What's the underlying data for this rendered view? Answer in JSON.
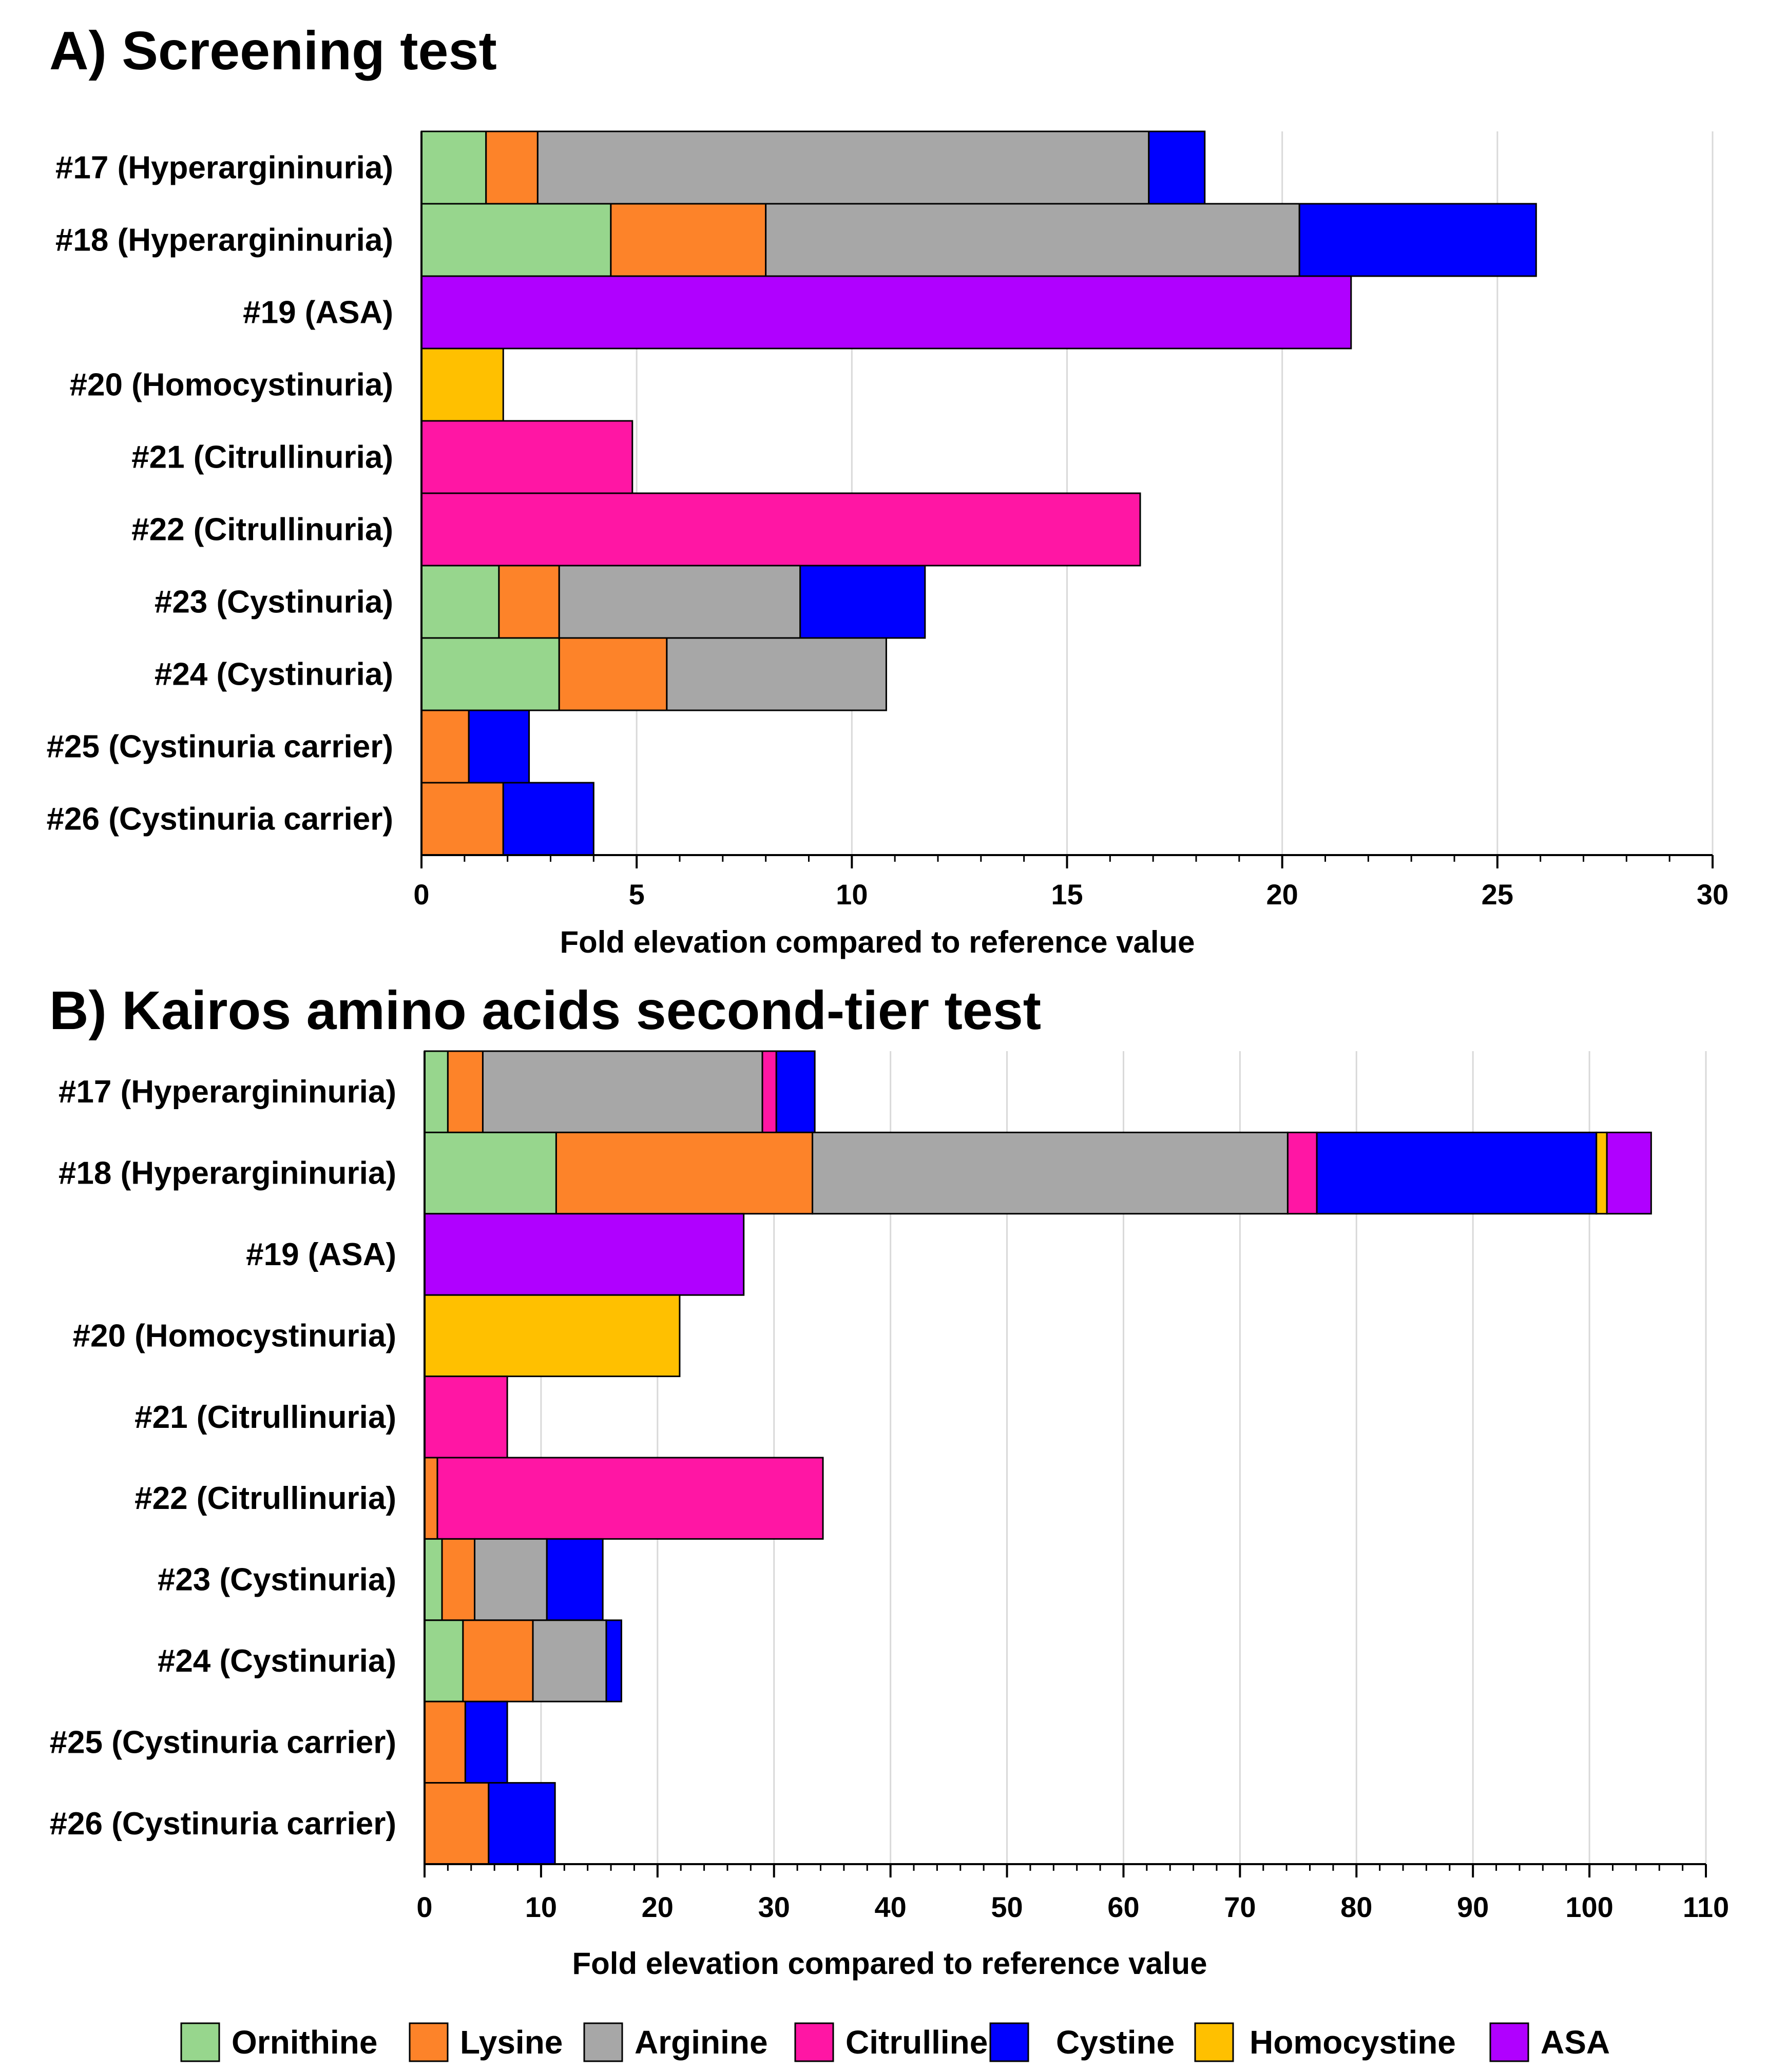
{
  "legend": [
    {
      "name": "Ornithine",
      "color": "#97d68d"
    },
    {
      "name": "Lysine",
      "color": "#fd8329"
    },
    {
      "name": "Arginine",
      "color": "#a7a7a7"
    },
    {
      "name": "Citrulline",
      "color": "#ff16a4"
    },
    {
      "name": "Cystine",
      "color": "#0000ff"
    },
    {
      "name": "Homocystine",
      "color": "#ffc000"
    },
    {
      "name": "ASA",
      "color": "#b000ff"
    }
  ],
  "chart_data": [
    {
      "type": "bar",
      "orientation": "horizontal",
      "stacked": true,
      "title": "A) Screening test",
      "xlabel": "Fold elevation compared to reference value",
      "ylabel": "",
      "xlim": [
        0,
        30
      ],
      "xticks": [
        "0",
        "5",
        "10",
        "15",
        "20",
        "25",
        "30"
      ],
      "grid": true,
      "categories": [
        "#17 (Hyperargininuria)",
        "#18 (Hyperargininuria)",
        "#19 (ASA)",
        "#20 (Homocystinuria)",
        "#21 (Citrullinuria)",
        "#22 (Citrullinuria)",
        "#23 (Cystinuria)",
        "#24 (Cystinuria)",
        "#25 (Cystinuria carrier)",
        "#26 (Cystinuria carrier)"
      ],
      "series": [
        {
          "name": "Ornithine",
          "values": [
            1.5,
            4.4,
            0,
            0,
            0,
            0,
            1.8,
            3.2,
            0,
            0
          ]
        },
        {
          "name": "Lysine",
          "values": [
            1.2,
            3.6,
            0,
            0,
            0,
            0,
            1.4,
            2.5,
            1.1,
            1.9
          ]
        },
        {
          "name": "Arginine",
          "values": [
            14.2,
            12.4,
            0,
            0,
            0,
            0,
            5.6,
            5.1,
            0,
            0
          ]
        },
        {
          "name": "Citrulline",
          "values": [
            0,
            0,
            0,
            0,
            4.9,
            16.7,
            0,
            0,
            0,
            0
          ]
        },
        {
          "name": "Cystine",
          "values": [
            1.3,
            5.5,
            0,
            0,
            0,
            0,
            2.9,
            0,
            1.4,
            2.1
          ]
        },
        {
          "name": "Homocystine",
          "values": [
            0,
            0,
            0,
            1.9,
            0,
            0,
            0,
            0,
            0,
            0
          ]
        },
        {
          "name": "ASA",
          "values": [
            0,
            0,
            21.6,
            0,
            0,
            0,
            0,
            0,
            0,
            0
          ]
        }
      ]
    },
    {
      "type": "bar",
      "orientation": "horizontal",
      "stacked": true,
      "title": "B) Kairos amino acids second-tier test",
      "xlabel": "Fold elevation compared to reference value",
      "ylabel": "",
      "xlim": [
        0,
        110
      ],
      "xticks": [
        "0",
        "10",
        "20",
        "30",
        "40",
        "50",
        "60",
        "70",
        "80",
        "90",
        "100",
        "110"
      ],
      "grid": true,
      "categories": [
        "#17 (Hyperargininuria)",
        "#18 (Hyperargininuria)",
        "#19 (ASA)",
        "#20 (Homocystinuria)",
        "#21 (Citrullinuria)",
        "#22 (Citrullinuria)",
        "#23 (Cystinuria)",
        "#24 (Cystinuria)",
        "#25 (Cystinuria carrier)",
        "#26 (Cystinuria carrier)"
      ],
      "series": [
        {
          "name": "Ornithine",
          "values": [
            2.0,
            11.3,
            0,
            0,
            0,
            0,
            1.5,
            3.3,
            0,
            0
          ]
        },
        {
          "name": "Lysine",
          "values": [
            3.0,
            22.0,
            0,
            0,
            0,
            1.1,
            2.8,
            6.0,
            3.5,
            5.5
          ]
        },
        {
          "name": "Arginine",
          "values": [
            24.0,
            40.8,
            0,
            0,
            0,
            0,
            6.2,
            6.3,
            0,
            0
          ]
        },
        {
          "name": "Citrulline",
          "values": [
            1.2,
            2.5,
            0,
            0,
            7.1,
            33.1,
            0,
            0,
            0,
            0
          ]
        },
        {
          "name": "Cystine",
          "values": [
            3.3,
            24.0,
            0,
            0,
            0,
            0,
            4.8,
            1.3,
            3.6,
            5.7
          ]
        },
        {
          "name": "Homocystine",
          "values": [
            0,
            0.9,
            0,
            21.9,
            0,
            0,
            0,
            0,
            0,
            0
          ]
        },
        {
          "name": "ASA",
          "values": [
            0,
            3.8,
            27.4,
            0,
            0,
            0,
            0,
            0,
            0,
            0
          ]
        }
      ]
    }
  ]
}
